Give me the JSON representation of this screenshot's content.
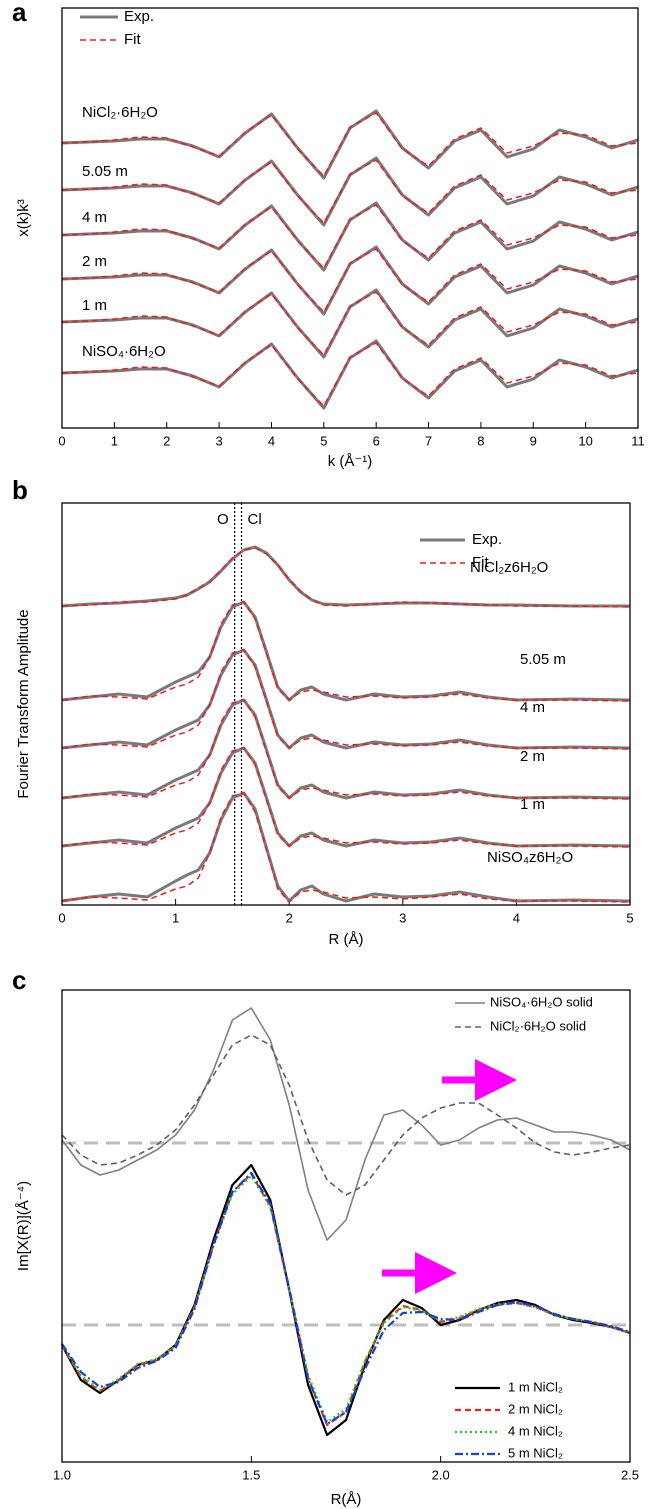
{
  "chart_data": [
    {
      "type": "line",
      "panel_label": "a",
      "xlabel": "k (Å⁻¹)",
      "ylabel": "x(k)k³",
      "xlim": [
        0,
        11
      ],
      "xticks": [
        0,
        1,
        2,
        3,
        4,
        5,
        6,
        7,
        8,
        9,
        10,
        11
      ],
      "ylim": [
        0,
        42
      ],
      "legend": [
        {
          "name": "Exp.",
          "color": "#7a7a7a",
          "dash": "solid"
        },
        {
          "name": "Fit",
          "color": "#ee1c1c",
          "dash": "dashed"
        }
      ],
      "x": [
        0,
        0.5,
        1,
        1.5,
        2,
        2.5,
        3,
        3.5,
        4,
        4.5,
        5,
        5.5,
        6,
        6.5,
        7,
        7.5,
        8,
        8.5,
        9,
        9.5,
        10,
        10.5,
        11
      ],
      "samples": [
        {
          "label": "NiCl₂·6H₂O",
          "exp": [
            28.5,
            28.6,
            28.7,
            28.9,
            28.9,
            28.2,
            27.1,
            29.5,
            31.4,
            28,
            25,
            30,
            31.7,
            28,
            26,
            28.7,
            29.8,
            27.1,
            27.9,
            29.8,
            29.1,
            28,
            28.8
          ],
          "fit": [
            28.5,
            28.6,
            28.8,
            29.1,
            29,
            28.1,
            27.2,
            29.6,
            31.3,
            27.9,
            25.2,
            30.1,
            31.5,
            27.9,
            26.2,
            28.9,
            30,
            27.5,
            28.2,
            29.5,
            29.3,
            28.2,
            28.5
          ]
        },
        {
          "label": "5.05 m",
          "exp": [
            23.8,
            23.9,
            24,
            24.2,
            24.2,
            23.5,
            22.4,
            24.8,
            26.7,
            23.3,
            20.3,
            25.3,
            27,
            23.3,
            21.3,
            24,
            25.1,
            22.4,
            23.2,
            25.1,
            24.4,
            23.3,
            24.1
          ],
          "fit": [
            23.8,
            23.9,
            24.1,
            24.4,
            24.3,
            23.4,
            22.5,
            24.9,
            26.6,
            23.2,
            20.5,
            25.4,
            26.8,
            23.2,
            21.5,
            24.2,
            25.3,
            22.8,
            23.5,
            24.8,
            24.6,
            23.5,
            23.8
          ]
        },
        {
          "label": "4 m",
          "exp": [
            19.3,
            19.4,
            19.5,
            19.7,
            19.7,
            19,
            17.9,
            20.3,
            22.2,
            18.8,
            15.8,
            20.8,
            22.5,
            18.8,
            16.8,
            19.5,
            20.6,
            17.9,
            18.7,
            20.6,
            19.9,
            18.8,
            19.6
          ],
          "fit": [
            19.3,
            19.4,
            19.6,
            19.9,
            19.8,
            18.9,
            18,
            20.4,
            22.1,
            18.7,
            16,
            20.9,
            22.3,
            18.7,
            17,
            19.7,
            20.8,
            18.3,
            19,
            20.3,
            20.1,
            19,
            19.3
          ]
        },
        {
          "label": "2 m",
          "exp": [
            14.9,
            15,
            15.1,
            15.3,
            15.3,
            14.6,
            13.5,
            15.9,
            17.8,
            14.4,
            11.4,
            16.4,
            18.1,
            14.4,
            12.4,
            15.1,
            16.2,
            13.5,
            14.3,
            16.2,
            15.5,
            14.4,
            15.2
          ],
          "fit": [
            14.9,
            15,
            15.2,
            15.5,
            15.4,
            14.5,
            13.6,
            16,
            17.7,
            14.3,
            11.6,
            16.5,
            17.9,
            14.3,
            12.6,
            15.3,
            16.4,
            13.9,
            14.6,
            15.9,
            15.7,
            14.6,
            14.9
          ]
        },
        {
          "label": "1 m",
          "exp": [
            10.6,
            10.7,
            10.8,
            11,
            11,
            10.3,
            9.2,
            11.6,
            13.5,
            10.1,
            7.1,
            12.1,
            13.8,
            10.1,
            8.1,
            10.8,
            11.9,
            9.2,
            10,
            11.9,
            11.2,
            10.1,
            10.9
          ],
          "fit": [
            10.6,
            10.7,
            10.9,
            11.2,
            11.1,
            10.2,
            9.3,
            11.7,
            13.4,
            10,
            7.3,
            12.2,
            13.6,
            10,
            8.3,
            11,
            12.1,
            9.6,
            10.3,
            11.6,
            11.4,
            10.3,
            10.6
          ]
        },
        {
          "label": "NiSO₄·6H₂O",
          "exp": [
            5.5,
            5.6,
            5.7,
            5.9,
            5.9,
            5.2,
            4.1,
            6.5,
            8.4,
            5,
            2,
            7,
            8.7,
            5,
            3,
            5.7,
            6.8,
            4.1,
            4.9,
            6.8,
            6.1,
            5,
            5.8
          ],
          "fit": [
            5.5,
            5.6,
            5.8,
            6.1,
            6,
            5.1,
            4.2,
            6.6,
            8.3,
            4.9,
            2.2,
            7.1,
            8.5,
            4.9,
            3.2,
            5.9,
            7,
            4.5,
            5.2,
            6.5,
            6.3,
            5.2,
            5.5
          ]
        }
      ]
    },
    {
      "type": "line",
      "panel_label": "b",
      "xlabel": "R (Å)",
      "ylabel": "Fourier Transform Amplitude",
      "xlim": [
        0,
        5
      ],
      "xticks": [
        0,
        1,
        2,
        3,
        4,
        5
      ],
      "ylim": [
        0,
        40.2
      ],
      "legend": [
        {
          "name": "Exp.",
          "color": "#7a7a7a",
          "dash": "solid"
        },
        {
          "name": "Fit",
          "color": "#ee1c1c",
          "dash": "dashed"
        }
      ],
      "markers": [
        {
          "label": "O",
          "x": 1.52
        },
        {
          "label": "Cl",
          "x": 1.58
        }
      ],
      "x": [
        0,
        0.25,
        0.5,
        0.75,
        1,
        1.1,
        1.2,
        1.3,
        1.4,
        1.5,
        1.6,
        1.7,
        1.8,
        1.9,
        2,
        2.1,
        2.2,
        2.3,
        2.5,
        2.75,
        3,
        3.25,
        3.5,
        3.75,
        4,
        4.5,
        5
      ],
      "samples": [
        {
          "label": "NiCl₂z6H₂O",
          "exp": [
            29.9,
            30.1,
            30.2,
            30.4,
            30.7,
            31,
            31.6,
            32.3,
            33.4,
            34.6,
            35.5,
            35.8,
            35.2,
            34,
            32.5,
            31.3,
            30.5,
            30.1,
            30,
            30.1,
            30.2,
            30.2,
            30.1,
            30,
            30,
            29.9,
            29.9
          ],
          "fit": [
            29.9,
            30,
            30.3,
            30.3,
            30.6,
            31,
            31.7,
            32.4,
            33.5,
            34.7,
            35.5,
            35.7,
            35.1,
            34,
            32.6,
            31.4,
            30.5,
            30,
            29.9,
            30.1,
            30.3,
            30.2,
            30.1,
            30,
            29.9,
            29.9,
            29.8
          ]
        },
        {
          "label": "5.05 m",
          "exp": [
            20.5,
            20.8,
            21.1,
            20.8,
            22.3,
            22.8,
            23.3,
            24.8,
            27.8,
            29.8,
            30.3,
            28.8,
            25.3,
            21.8,
            20.5,
            21.5,
            21.8,
            21.1,
            20.5,
            21.1,
            20.8,
            20.9,
            21.3,
            20.8,
            20.5,
            20.6,
            20.5
          ],
          "fit": [
            20.5,
            20.9,
            20.8,
            20.6,
            21.8,
            22.1,
            22.8,
            24.8,
            28.1,
            30,
            30.3,
            28.6,
            25.1,
            21.6,
            20.5,
            21.3,
            21.5,
            21.3,
            20.8,
            20.9,
            20.7,
            20.8,
            21.1,
            20.7,
            20.5,
            20.5,
            20.4
          ]
        },
        {
          "label": "4 m",
          "exp": [
            15.7,
            16,
            16.3,
            16,
            17.5,
            18,
            18.5,
            20,
            23,
            25,
            25.5,
            24,
            20.5,
            17,
            15.7,
            16.7,
            17,
            16.3,
            15.7,
            16.3,
            16,
            16.1,
            16.5,
            16,
            15.7,
            15.8,
            15.7
          ],
          "fit": [
            15.7,
            16.1,
            16,
            15.8,
            17,
            17.3,
            18,
            20,
            23.3,
            25.2,
            25.5,
            23.8,
            20.3,
            16.8,
            15.7,
            16.5,
            16.7,
            16.5,
            16,
            16.1,
            15.9,
            16,
            16.3,
            15.9,
            15.7,
            15.7,
            15.6
          ]
        },
        {
          "label": "2 m",
          "exp": [
            10.7,
            11,
            11.3,
            11,
            12.5,
            13,
            13.5,
            15,
            18,
            20,
            20.5,
            19,
            15.5,
            12,
            10.7,
            11.7,
            12,
            11.3,
            10.7,
            11.3,
            11,
            11.1,
            11.5,
            11,
            10.7,
            10.8,
            10.7
          ],
          "fit": [
            10.7,
            11.1,
            11,
            10.8,
            12,
            12.3,
            13,
            15,
            18.3,
            20.2,
            20.5,
            18.8,
            15.3,
            11.8,
            10.7,
            11.5,
            11.7,
            11.5,
            11,
            11.1,
            10.9,
            11,
            11.3,
            10.9,
            10.7,
            10.7,
            10.6
          ]
        },
        {
          "label": "1 m",
          "exp": [
            5.9,
            6.2,
            6.5,
            6.2,
            7.7,
            8.2,
            8.7,
            10.2,
            13.2,
            15.2,
            15.7,
            14.2,
            10.7,
            7.2,
            5.9,
            6.9,
            7.2,
            6.5,
            5.9,
            6.5,
            6.2,
            6.3,
            6.7,
            6.2,
            5.9,
            6,
            5.9
          ],
          "fit": [
            5.9,
            6.3,
            6.2,
            6,
            7.2,
            7.5,
            8.2,
            10.2,
            13.5,
            15.4,
            15.7,
            14,
            10.5,
            7,
            5.9,
            6.7,
            6.9,
            6.7,
            6.2,
            6.3,
            6.1,
            6.2,
            6.5,
            6.1,
            5.9,
            5.9,
            5.8
          ]
        },
        {
          "label": "NiSO₄z6H₂O",
          "exp": [
            0.4,
            0.8,
            1.1,
            0.8,
            2.4,
            3,
            3.5,
            5.2,
            8.5,
            10.7,
            11.2,
            9.6,
            5.7,
            1.9,
            0.4,
            1.5,
            1.9,
            1.1,
            0.4,
            1.1,
            0.8,
            0.9,
            1.3,
            0.8,
            0.4,
            0.5,
            0.4
          ],
          "fit": [
            0.4,
            0.8,
            0.7,
            0.5,
            1.6,
            1.9,
            2.7,
            5.2,
            8.8,
            10.9,
            11.2,
            9.3,
            5.5,
            1.6,
            0.3,
            1.3,
            1.5,
            1.3,
            0.7,
            0.8,
            0.6,
            0.8,
            1.1,
            0.6,
            0.4,
            0.4,
            0.3
          ]
        }
      ]
    },
    {
      "type": "line",
      "panel_label": "c",
      "xlabel": "R(Å)",
      "ylabel": "Im[X(R)](Å⁻⁴)",
      "xlim": [
        1,
        2.5
      ],
      "xticks": [
        {
          "value": 1,
          "label": "1.0"
        },
        1.5,
        {
          "value": 2,
          "label": "2.0"
        },
        2.5
      ],
      "ylim": [
        0,
        47.2
      ],
      "zero_lines": [
        31.9,
        13.7
      ],
      "x": [
        1,
        1.05,
        1.1,
        1.15,
        1.2,
        1.25,
        1.3,
        1.35,
        1.4,
        1.45,
        1.5,
        1.55,
        1.6,
        1.65,
        1.7,
        1.75,
        1.8,
        1.85,
        1.9,
        1.95,
        2,
        2.05,
        2.1,
        2.15,
        2.2,
        2.25,
        2.3,
        2.35,
        2.4,
        2.45,
        2.5
      ],
      "series": [
        {
          "name": "NiSO₄·6H₂O solid",
          "color": "#808080",
          "dash": "solid",
          "values": [
            32.2,
            29.7,
            28.7,
            29.2,
            30.2,
            31.2,
            32.7,
            35.2,
            39.2,
            44.2,
            45.4,
            42.2,
            35.7,
            27.2,
            22.2,
            24.2,
            30.2,
            34.7,
            35.2,
            33.7,
            31.7,
            32.2,
            33.4,
            34.2,
            34.4,
            33.7,
            33,
            33,
            32.7,
            32.2,
            31.2
          ]
        },
        {
          "name": "NiCl₂·6H₂O solid",
          "color": "#606060",
          "dash": "dashed",
          "values": [
            32.7,
            30.7,
            29.7,
            29.9,
            30.7,
            31.7,
            33.2,
            35.7,
            38.7,
            41.7,
            42.7,
            41.7,
            37.7,
            32.2,
            28.2,
            26.7,
            27.7,
            30.2,
            32.7,
            34.4,
            35.4,
            35.9,
            35.9,
            34.7,
            33.4,
            31.9,
            31,
            30.7,
            31,
            31.4,
            31.7
          ]
        },
        {
          "name": "1 m NiCl₂",
          "color": "#000000",
          "dash": "solid",
          "values": [
            11.7,
            8.2,
            6.9,
            8.2,
            9.7,
            10.2,
            11.7,
            15.7,
            22.2,
            27.7,
            29.7,
            26.2,
            17.2,
            7.7,
            2.7,
            4.2,
            9.7,
            14.2,
            16.2,
            15.4,
            13.7,
            14.2,
            15.2,
            15.9,
            16.2,
            15.7,
            14.7,
            14.2,
            13.9,
            13.5,
            12.9
          ]
        },
        {
          "name": "2 m NiCl₂",
          "color": "#e8281e",
          "dash": "dashed",
          "values": [
            11.7,
            8.5,
            7.1,
            8.2,
            9.7,
            10.2,
            11.6,
            15.5,
            21.8,
            27,
            28.8,
            25.6,
            17.2,
            8.4,
            3.7,
            5,
            10,
            14,
            15.6,
            15.2,
            14,
            14.4,
            15.2,
            15.7,
            15.9,
            15.5,
            14.7,
            14.3,
            14,
            13.5,
            12.9
          ]
        },
        {
          "name": "4 m NiCl₂",
          "color": "#22cc22",
          "dash": "dotted",
          "values": [
            11.8,
            8.6,
            7.2,
            8.3,
            9.8,
            10.3,
            11.6,
            15.4,
            21.6,
            26.8,
            28.6,
            25.5,
            17.3,
            8.7,
            4,
            5.3,
            10.1,
            13.9,
            15.5,
            15.1,
            14.1,
            14.5,
            15.3,
            15.8,
            15.9,
            15.5,
            14.7,
            14.3,
            14,
            13.5,
            12.9
          ]
        },
        {
          "name": "5 m NiCl₂",
          "color": "#1a3fd6",
          "dash": "dashdot",
          "values": [
            11.8,
            9,
            7.5,
            8,
            9.4,
            10.1,
            11.4,
            15.3,
            21.7,
            27,
            28.9,
            25.8,
            17.4,
            8.3,
            3.8,
            5,
            9.3,
            13.2,
            14.9,
            15,
            14.3,
            14.2,
            15,
            15.7,
            16,
            15.6,
            14.8,
            14.3,
            14,
            13.6,
            13
          ]
        }
      ]
    }
  ]
}
